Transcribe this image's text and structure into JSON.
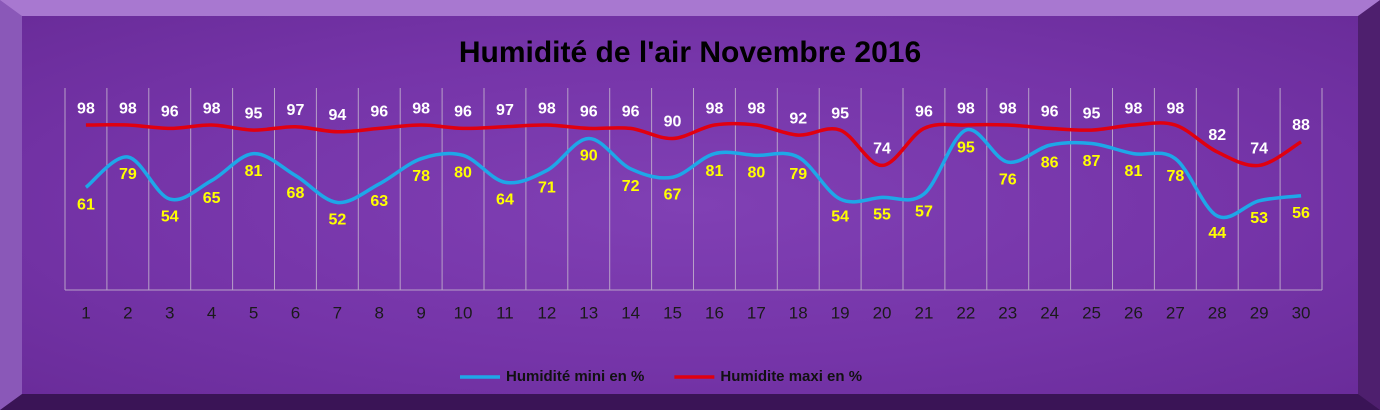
{
  "chart_data": {
    "type": "line",
    "title": "Humidité de l'air  Novembre 2016",
    "categories": [
      1,
      2,
      3,
      4,
      5,
      6,
      7,
      8,
      9,
      10,
      11,
      12,
      13,
      14,
      15,
      16,
      17,
      18,
      19,
      20,
      21,
      22,
      23,
      24,
      25,
      26,
      27,
      28,
      29,
      30
    ],
    "series": [
      {
        "name": "Humidité mini en %",
        "color": "#1ea7e8",
        "label_color": "#ffff00",
        "values": [
          61,
          79,
          54,
          65,
          81,
          68,
          52,
          63,
          78,
          80,
          64,
          71,
          90,
          72,
          67,
          81,
          80,
          79,
          54,
          55,
          57,
          95,
          76,
          86,
          87,
          81,
          78,
          44,
          53,
          56
        ]
      },
      {
        "name": "Humidite maxi en %",
        "color": "#e00010",
        "label_color": "#ffffff",
        "values": [
          98,
          98,
          96,
          98,
          95,
          97,
          94,
          96,
          98,
          96,
          97,
          98,
          96,
          96,
          90,
          98,
          98,
          92,
          95,
          74,
          96,
          98,
          98,
          96,
          95,
          98,
          98,
          82,
          74,
          88
        ]
      }
    ],
    "ylim": [
      0,
      120
    ],
    "grid": true,
    "legend": "bottom"
  }
}
